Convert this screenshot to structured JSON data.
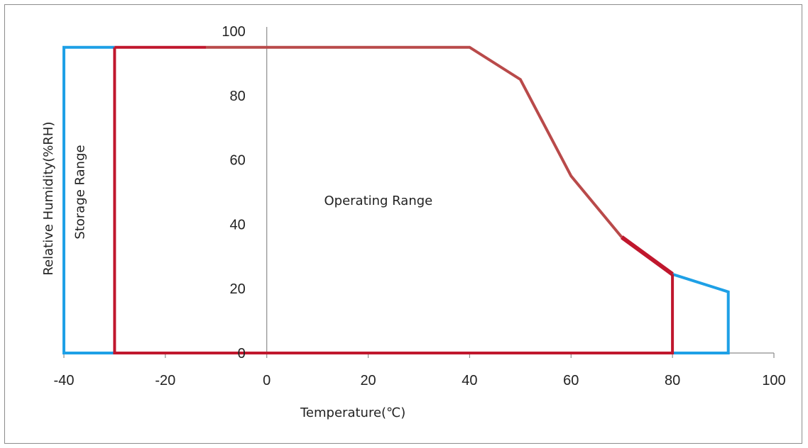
{
  "chart_data": {
    "type": "line",
    "xlabel": "Temperature(℃)",
    "ylabel": "Relative Humidity(%RH)",
    "xlim": [
      -40,
      100
    ],
    "ylim": [
      0,
      100
    ],
    "x_ticks": [
      -40,
      -20,
      0,
      20,
      40,
      60,
      80,
      100
    ],
    "y_ticks": [
      0,
      20,
      40,
      60,
      80,
      100
    ],
    "grid": false,
    "legend": "none",
    "annotations": [
      {
        "text": "Storage Range",
        "x": -36,
        "y": 50
      },
      {
        "text": "Operating Range",
        "x": 22,
        "y": 46
      }
    ],
    "series": [
      {
        "color": "#1ea0e6",
        "points": [
          [
            80,
            24.5
          ],
          [
            91,
            19
          ],
          [
            91,
            0
          ],
          [
            -40,
            0
          ],
          [
            -40,
            95
          ],
          [
            -30,
            95
          ]
        ]
      },
      {
        "color": "#c0172d",
        "points": [
          [
            -30,
            95
          ],
          [
            -12,
            95
          ]
        ]
      },
      {
        "color": "#c0172d",
        "points": [
          [
            -30,
            95
          ],
          [
            -30,
            0
          ],
          [
            80,
            0
          ],
          [
            80,
            24.5
          ]
        ]
      },
      {
        "color": "#b94a4a",
        "points": [
          [
            -12,
            95
          ],
          [
            40,
            95
          ],
          [
            50,
            85
          ],
          [
            60,
            55
          ],
          [
            70,
            36
          ]
        ]
      },
      {
        "color": "#c0172d",
        "points": [
          [
            70,
            36
          ],
          [
            80,
            24.5
          ]
        ]
      }
    ]
  }
}
